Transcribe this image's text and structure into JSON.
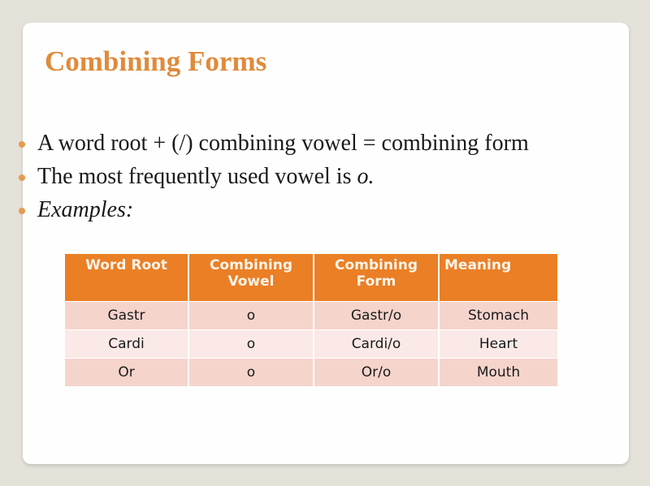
{
  "title": "Combining Forms",
  "bullets": [
    {
      "text": "A word root + (/) combining vowel = combining form"
    },
    {
      "text": "The most frequently used vowel is ",
      "emph": "o."
    },
    {
      "text": "Examples:"
    }
  ],
  "table": {
    "headers": [
      "Word Root",
      "Combining Vowel",
      "Combining Form",
      "Meaning"
    ],
    "rows": [
      [
        "Gastr",
        "o",
        "Gastr/o",
        "Stomach"
      ],
      [
        "Cardi",
        "o",
        "Cardi/o",
        "Heart"
      ],
      [
        "Or",
        "o",
        "Or/o",
        "Mouth"
      ]
    ]
  },
  "colors": {
    "accent": "#df8b3c",
    "header_bg": "#ea7f26",
    "row_odd": "#f5d4cc",
    "row_even": "#fae9e6"
  }
}
